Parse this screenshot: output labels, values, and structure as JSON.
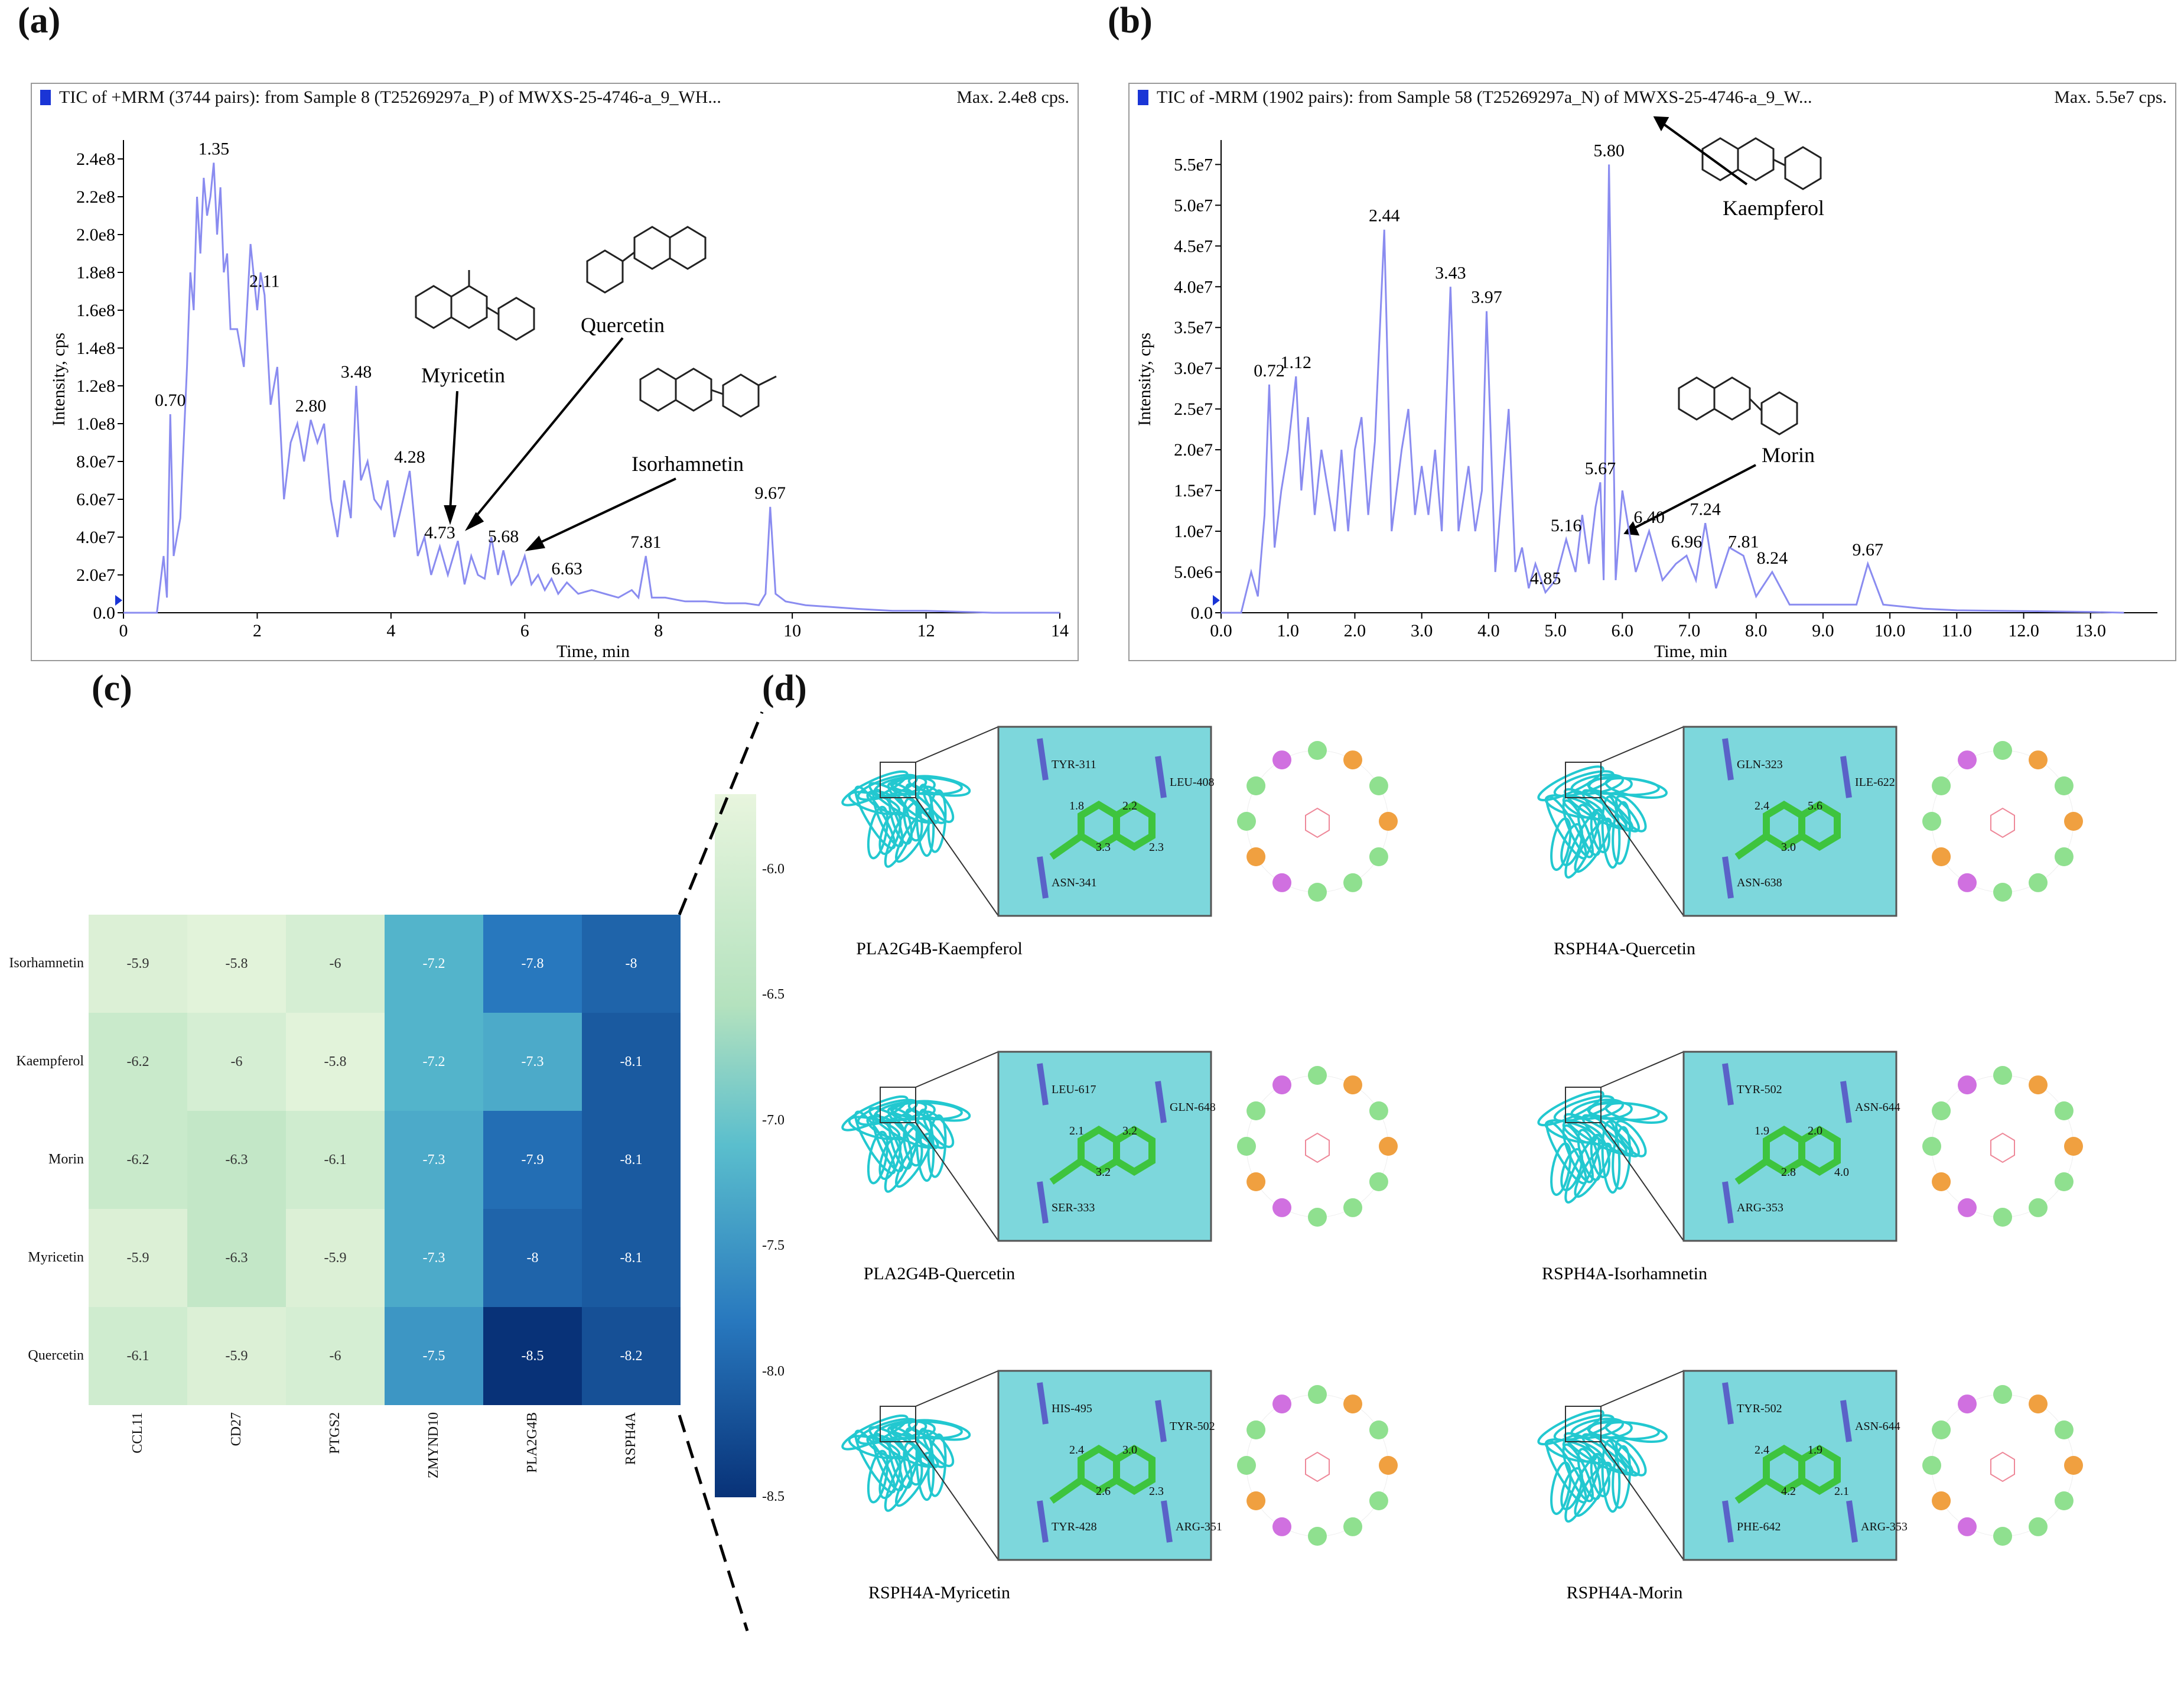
{
  "panels": {
    "a": "(a)",
    "b": "(b)",
    "c": "(c)",
    "d": "(d)"
  },
  "chart_data": [
    {
      "type": "line",
      "id": "a",
      "title": "TIC of +MRM (3744 pairs): from Sample 8 (T25269297a_P) of MWXS-25-4746-a_9_WH...",
      "max_label": "Max. 2.4e8 cps.",
      "xlabel": "Time, min",
      "ylabel": "Intensity, cps",
      "xlim": [
        0,
        14
      ],
      "ylim": [
        0,
        250000000.0
      ],
      "xticks": [
        "0",
        "2",
        "4",
        "6",
        "8",
        "10",
        "12",
        "14"
      ],
      "yticks": [
        "0.0",
        "2.0e7",
        "4.0e7",
        "6.0e7",
        "8.0e7",
        "1.0e8",
        "1.2e8",
        "1.4e8",
        "1.6e8",
        "1.8e8",
        "2.0e8",
        "2.2e8",
        "2.4e8"
      ],
      "x": [
        0,
        0.35,
        0.5,
        0.6,
        0.65,
        0.7,
        0.75,
        0.8,
        0.85,
        0.95,
        1.0,
        1.05,
        1.1,
        1.15,
        1.2,
        1.25,
        1.3,
        1.35,
        1.4,
        1.45,
        1.5,
        1.55,
        1.6,
        1.7,
        1.8,
        1.9,
        2.0,
        2.05,
        2.11,
        2.2,
        2.3,
        2.4,
        2.5,
        2.6,
        2.7,
        2.8,
        2.9,
        3.0,
        3.1,
        3.2,
        3.3,
        3.4,
        3.48,
        3.55,
        3.65,
        3.75,
        3.85,
        3.95,
        4.05,
        4.15,
        4.28,
        4.4,
        4.5,
        4.6,
        4.73,
        4.85,
        5.0,
        5.1,
        5.2,
        5.3,
        5.4,
        5.5,
        5.6,
        5.68,
        5.8,
        5.9,
        6.0,
        6.1,
        6.2,
        6.3,
        6.4,
        6.5,
        6.63,
        6.8,
        7.0,
        7.2,
        7.4,
        7.6,
        7.7,
        7.81,
        7.9,
        8.1,
        8.4,
        8.7,
        9.0,
        9.3,
        9.5,
        9.6,
        9.67,
        9.75,
        9.9,
        10.2,
        10.6,
        11.0,
        11.5,
        12.0,
        13.0,
        14.0
      ],
      "y": [
        0,
        0,
        0,
        30000000.0,
        8000000.0,
        105000000.0,
        30000000.0,
        40000000.0,
        50000000.0,
        130000000.0,
        180000000.0,
        160000000.0,
        220000000.0,
        190000000.0,
        230000000.0,
        210000000.0,
        220000000.0,
        238000000.0,
        200000000.0,
        225000000.0,
        180000000.0,
        190000000.0,
        150000000.0,
        150000000.0,
        130000000.0,
        195000000.0,
        160000000.0,
        180000000.0,
        168000000.0,
        110000000.0,
        130000000.0,
        60000000.0,
        90000000.0,
        100000000.0,
        80000000.0,
        102000000.0,
        90000000.0,
        100000000.0,
        60000000.0,
        40000000.0,
        70000000.0,
        50000000.0,
        120000000.0,
        70000000.0,
        80000000.0,
        60000000.0,
        55000000.0,
        70000000.0,
        40000000.0,
        55000000.0,
        75000000.0,
        30000000.0,
        40000000.0,
        20000000.0,
        35000000.0,
        20000000.0,
        38000000.0,
        15000000.0,
        30000000.0,
        20000000.0,
        18000000.0,
        40000000.0,
        20000000.0,
        33000000.0,
        15000000.0,
        20000000.0,
        30000000.0,
        15000000.0,
        20000000.0,
        12000000.0,
        18000000.0,
        10000000.0,
        16000000.0,
        10000000.0,
        12000000.0,
        10000000.0,
        8000000.0,
        12000000.0,
        8000000.0,
        30000000.0,
        8000000.0,
        8000000.0,
        6000000.0,
        6000000.0,
        5000000.0,
        5000000.0,
        4000000.0,
        10000000.0,
        56000000.0,
        10000000.0,
        6000000.0,
        4000000.0,
        3000000.0,
        2000000.0,
        1000000.0,
        1000000.0,
        0,
        0
      ],
      "peak_labels": [
        {
          "t": "0.70",
          "x": 0.7,
          "y": 105000000.0
        },
        {
          "t": "1.35",
          "x": 1.35,
          "y": 238000000.0
        },
        {
          "t": "2.11",
          "x": 2.11,
          "y": 168000000.0
        },
        {
          "t": "2.80",
          "x": 2.8,
          "y": 102000000.0
        },
        {
          "t": "3.48",
          "x": 3.48,
          "y": 120000000.0
        },
        {
          "t": "4.28",
          "x": 4.28,
          "y": 75000000.0
        },
        {
          "t": "4.73",
          "x": 4.73,
          "y": 35000000.0
        },
        {
          "t": "5.68",
          "x": 5.68,
          "y": 33000000.0
        },
        {
          "t": "6.63",
          "x": 6.63,
          "y": 16000000.0
        },
        {
          "t": "7.81",
          "x": 7.81,
          "y": 30000000.0
        },
        {
          "t": "9.67",
          "x": 9.67,
          "y": 56000000.0
        }
      ],
      "annotations": [
        "Myricetin",
        "Quercetin",
        "Isorhamnetin"
      ]
    },
    {
      "type": "line",
      "id": "b",
      "title": "TIC of -MRM (1902 pairs): from Sample 58 (T25269297a_N) of MWXS-25-4746-a_9_W...",
      "max_label": "Max. 5.5e7 cps.",
      "xlabel": "Time, min",
      "ylabel": "Intensity, cps",
      "xlim": [
        0,
        14
      ],
      "ylim": [
        0,
        58000000.0
      ],
      "xticks": [
        "0.0",
        "1.0",
        "2.0",
        "3.0",
        "4.0",
        "5.0",
        "6.0",
        "7.0",
        "8.0",
        "9.0",
        "10.0",
        "11.0",
        "12.0",
        "13.0"
      ],
      "yticks": [
        "0.0",
        "5.0e6",
        "1.0e7",
        "1.5e7",
        "2.0e7",
        "2.5e7",
        "3.0e7",
        "3.5e7",
        "4.0e7",
        "4.5e7",
        "5.0e7",
        "5.5e7"
      ],
      "x": [
        0,
        0.3,
        0.45,
        0.55,
        0.65,
        0.72,
        0.8,
        0.9,
        1.0,
        1.12,
        1.2,
        1.3,
        1.4,
        1.5,
        1.6,
        1.7,
        1.8,
        1.9,
        2.0,
        2.1,
        2.2,
        2.3,
        2.44,
        2.55,
        2.7,
        2.8,
        2.9,
        3.0,
        3.1,
        3.2,
        3.3,
        3.43,
        3.55,
        3.7,
        3.8,
        3.9,
        3.97,
        4.1,
        4.2,
        4.3,
        4.4,
        4.5,
        4.6,
        4.7,
        4.85,
        5.0,
        5.16,
        5.3,
        5.4,
        5.5,
        5.6,
        5.67,
        5.72,
        5.8,
        5.9,
        6.0,
        6.2,
        6.4,
        6.6,
        6.8,
        6.96,
        7.1,
        7.24,
        7.4,
        7.6,
        7.81,
        8.0,
        8.24,
        8.5,
        9.0,
        9.5,
        9.67,
        9.9,
        10.5,
        11.0,
        12.0,
        13.0,
        13.5
      ],
      "y": [
        0,
        0,
        5000000.0,
        2000000.0,
        12000000.0,
        28000000.0,
        8000000.0,
        15000000.0,
        20000000.0,
        29000000.0,
        15000000.0,
        24000000.0,
        12000000.0,
        20000000.0,
        15000000.0,
        10000000.0,
        20000000.0,
        10000000.0,
        20000000.0,
        24000000.0,
        12000000.0,
        21000000.0,
        47000000.0,
        10000000.0,
        20000000.0,
        25000000.0,
        12000000.0,
        18000000.0,
        12000000.0,
        20000000.0,
        10000000.0,
        40000000.0,
        10000000.0,
        18000000.0,
        10000000.0,
        15000000.0,
        37000000.0,
        5000000.0,
        15000000.0,
        25000000.0,
        5000000.0,
        8000000.0,
        3000000.0,
        6000000.0,
        2500000.0,
        4000000.0,
        9000000.0,
        5000000.0,
        12000000.0,
        6000000.0,
        13000000.0,
        16000000.0,
        4000000.0,
        55000000.0,
        4000000.0,
        15000000.0,
        5000000.0,
        10000000.0,
        4000000.0,
        6000000.0,
        7000000.0,
        4000000.0,
        11000000.0,
        3000000.0,
        8000000.0,
        7000000.0,
        2000000.0,
        5000000.0,
        1000000.0,
        1000000.0,
        1000000.0,
        6000000.0,
        1000000.0,
        500000.0,
        300000.0,
        200000.0,
        100000.0,
        0
      ],
      "peak_labels": [
        {
          "t": "0.72",
          "x": 0.72,
          "y": 28000000.0
        },
        {
          "t": "1.12",
          "x": 1.12,
          "y": 29000000.0
        },
        {
          "t": "2.44",
          "x": 2.44,
          "y": 47000000.0
        },
        {
          "t": "3.43",
          "x": 3.43,
          "y": 40000000.0
        },
        {
          "t": "3.97",
          "x": 3.97,
          "y": 37000000.0
        },
        {
          "t": "4.85",
          "x": 4.85,
          "y": 2500000.0
        },
        {
          "t": "5.16",
          "x": 5.16,
          "y": 9000000.0
        },
        {
          "t": "5.67",
          "x": 5.67,
          "y": 16000000.0
        },
        {
          "t": "5.80",
          "x": 5.8,
          "y": 55000000.0
        },
        {
          "t": "6.40",
          "x": 6.4,
          "y": 10000000.0
        },
        {
          "t": "6.96",
          "x": 6.96,
          "y": 7000000.0
        },
        {
          "t": "7.24",
          "x": 7.24,
          "y": 11000000.0
        },
        {
          "t": "7.81",
          "x": 7.81,
          "y": 7000000.0
        },
        {
          "t": "8.24",
          "x": 8.24,
          "y": 5000000.0
        },
        {
          "t": "9.67",
          "x": 9.67,
          "y": 6000000.0
        }
      ],
      "annotations": [
        "Kaempferol",
        "Morin"
      ]
    },
    {
      "type": "heatmap",
      "id": "c",
      "rows": [
        "Isorhamnetin",
        "Kaempferol",
        "Morin",
        "Myricetin",
        "Quercetin"
      ],
      "cols": [
        "CCL11",
        "CD27",
        "PTGS2",
        "ZMYND10",
        "PLA2G4B",
        "RSPH4A"
      ],
      "values": [
        [
          "-5.9",
          "-5.8",
          "-6",
          "-7.2",
          "-7.8",
          "-8"
        ],
        [
          "-6.2",
          "-6",
          "-5.8",
          "-7.2",
          "-7.3",
          "-8.1"
        ],
        [
          "-6.2",
          "-6.3",
          "-6.1",
          "-7.3",
          "-7.9",
          "-8.1"
        ],
        [
          "-5.9",
          "-6.3",
          "-5.9",
          "-7.3",
          "-8",
          "-8.1"
        ],
        [
          "-6.1",
          "-5.9",
          "-6",
          "-7.5",
          "-8.5",
          "-8.2"
        ]
      ],
      "colorbar_range": [
        -8.5,
        -5.7
      ],
      "colorbar_ticks": [
        "-6.0",
        "-6.5",
        "-7.0",
        "-7.5",
        "-8.0",
        "-8.5"
      ]
    }
  ],
  "docking": [
    {
      "caption": "PLA2G4B-Kaempferol",
      "residues": [
        "TYR-311",
        "LEU-408",
        "ASN-341"
      ],
      "distances": [
        "1.8",
        "3.3",
        "2.2",
        "2.3"
      ]
    },
    {
      "caption": "RSPH4A-Quercetin",
      "residues": [
        "GLN-323",
        "ILE-622",
        "ASN-638"
      ],
      "distances": [
        "2.4",
        "3.0",
        "5.6"
      ]
    },
    {
      "caption": "PLA2G4B-Quercetin",
      "residues": [
        "LEU-617",
        "GLN-648",
        "SER-333"
      ],
      "distances": [
        "2.1",
        "3.2",
        "3.2"
      ]
    },
    {
      "caption": "RSPH4A-Isorhamnetin",
      "residues": [
        "TYR-502",
        "ASN-644",
        "ARG-353"
      ],
      "distances": [
        "1.9",
        "2.8",
        "2.0",
        "4.0"
      ]
    },
    {
      "caption": "RSPH4A-Myricetin",
      "residues": [
        "HIS-495",
        "TYR-502",
        "TYR-428",
        "ARG-351"
      ],
      "distances": [
        "2.4",
        "2.6",
        "3.0",
        "2.3"
      ]
    },
    {
      "caption": "RSPH4A-Morin",
      "residues": [
        "TYR-502",
        "ASN-644",
        "PHE-642",
        "ARG-353"
      ],
      "distances": [
        "2.4",
        "4.2",
        "1.9",
        "2.1"
      ]
    }
  ],
  "colors": {
    "trace": "#8a8cf0",
    "protein": "#22c8d0",
    "ligand": "#3ec43e",
    "residue": "#5a62c8"
  }
}
